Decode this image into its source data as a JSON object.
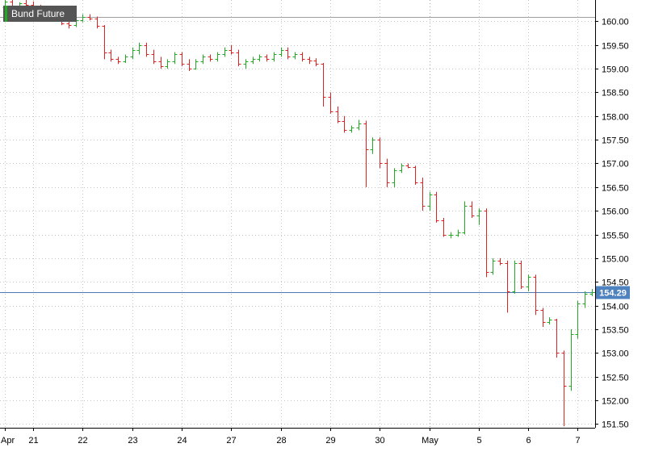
{
  "chart_data": {
    "type": "ohlc",
    "title": "Bund Future",
    "price_label": "154.29",
    "last_price": 154.29,
    "ylim": [
      151.42,
      160.45
    ],
    "ytick_values": [
      151.5,
      152.0,
      152.5,
      153.0,
      153.5,
      154.0,
      154.5,
      155.0,
      155.5,
      156.0,
      156.5,
      157.0,
      157.5,
      158.0,
      158.5,
      159.0,
      159.5,
      160.0
    ],
    "ytick_labels": [
      "151.50",
      "152.00",
      "152.50",
      "153.00",
      "153.50",
      "154.00",
      "154.50",
      "155.00",
      "155.50",
      "156.00",
      "156.50",
      "157.00",
      "157.50",
      "158.00",
      "158.50",
      "159.00",
      "159.50",
      "160.00"
    ],
    "xtick_labels": [
      "Apr",
      "21",
      "22",
      "23",
      "24",
      "27",
      "28",
      "29",
      "30",
      "May",
      "5",
      "6",
      "7"
    ],
    "xtick_positions": [
      0,
      4,
      11,
      18,
      25,
      32,
      39,
      46,
      53,
      60,
      67,
      74,
      81
    ],
    "vertical_gridline_index": 60,
    "reference_line": 160.1,
    "grid": true,
    "colors": {
      "up": "#22aa22",
      "down": "#dd2222",
      "grid": "#c8c8c8",
      "price_line": "#4b7ab0",
      "price_tag": "#4f83c0",
      "title_bg": "#555555"
    },
    "candles": [
      [
        160.3,
        160.45,
        160.2,
        160.42
      ],
      [
        160.42,
        160.45,
        160.25,
        160.3
      ],
      [
        160.3,
        160.4,
        160.25,
        160.38
      ],
      [
        160.38,
        160.45,
        160.3,
        160.35
      ],
      [
        160.35,
        160.42,
        160.2,
        160.3
      ],
      [
        160.3,
        160.35,
        160.2,
        160.25
      ],
      [
        160.25,
        160.3,
        160.1,
        160.15
      ],
      [
        160.15,
        160.2,
        160.0,
        160.05
      ],
      [
        160.05,
        160.1,
        159.92,
        159.95
      ],
      [
        159.95,
        160.0,
        159.85,
        159.92
      ],
      [
        159.92,
        160.05,
        159.88,
        160.02
      ],
      [
        160.02,
        160.15,
        159.98,
        160.1
      ],
      [
        160.1,
        160.15,
        160.02,
        160.05
      ],
      [
        160.05,
        160.1,
        159.85,
        159.9
      ],
      [
        159.9,
        159.92,
        159.2,
        159.35
      ],
      [
        159.35,
        159.4,
        159.15,
        159.2
      ],
      [
        159.2,
        159.25,
        159.1,
        159.15
      ],
      [
        159.15,
        159.3,
        159.12,
        159.25
      ],
      [
        159.25,
        159.45,
        159.2,
        159.4
      ],
      [
        159.4,
        159.55,
        159.3,
        159.5
      ],
      [
        159.5,
        159.55,
        159.25,
        159.3
      ],
      [
        159.3,
        159.4,
        159.1,
        159.15
      ],
      [
        159.15,
        159.25,
        159.0,
        159.05
      ],
      [
        159.05,
        159.2,
        159.0,
        159.15
      ],
      [
        159.15,
        159.35,
        159.1,
        159.3
      ],
      [
        159.3,
        159.35,
        159.05,
        159.1
      ],
      [
        159.1,
        159.2,
        158.95,
        159.0
      ],
      [
        159.0,
        159.2,
        158.98,
        159.15
      ],
      [
        159.15,
        159.3,
        159.1,
        159.25
      ],
      [
        159.25,
        159.3,
        159.15,
        159.2
      ],
      [
        159.2,
        159.35,
        159.15,
        159.3
      ],
      [
        159.3,
        159.45,
        159.25,
        159.4
      ],
      [
        159.4,
        159.5,
        159.3,
        159.35
      ],
      [
        159.35,
        159.4,
        159.05,
        159.1
      ],
      [
        159.1,
        159.2,
        159.0,
        159.15
      ],
      [
        159.15,
        159.25,
        159.1,
        159.2
      ],
      [
        159.2,
        159.3,
        159.15,
        159.25
      ],
      [
        159.25,
        159.3,
        159.15,
        159.2
      ],
      [
        159.2,
        159.35,
        159.15,
        159.3
      ],
      [
        159.3,
        159.45,
        159.25,
        159.4
      ],
      [
        159.4,
        159.45,
        159.2,
        159.25
      ],
      [
        159.25,
        159.35,
        159.2,
        159.3
      ],
      [
        159.3,
        159.35,
        159.15,
        159.2
      ],
      [
        159.2,
        159.25,
        159.1,
        159.18
      ],
      [
        159.18,
        159.22,
        159.05,
        159.1
      ],
      [
        159.1,
        159.12,
        158.2,
        158.4
      ],
      [
        158.4,
        158.5,
        158.05,
        158.1
      ],
      [
        158.1,
        158.2,
        157.85,
        157.9
      ],
      [
        157.9,
        158.0,
        157.65,
        157.7
      ],
      [
        157.7,
        157.8,
        157.65,
        157.75
      ],
      [
        157.75,
        157.92,
        157.7,
        157.85
      ],
      [
        157.85,
        157.9,
        156.5,
        157.3
      ],
      [
        157.3,
        157.55,
        157.2,
        157.5
      ],
      [
        157.5,
        157.55,
        156.9,
        157.0
      ],
      [
        157.0,
        157.1,
        156.5,
        156.6
      ],
      [
        156.6,
        156.9,
        156.5,
        156.85
      ],
      [
        156.85,
        157.0,
        156.8,
        156.95
      ],
      [
        156.95,
        157.0,
        156.9,
        156.92
      ],
      [
        156.92,
        156.95,
        156.55,
        156.6
      ],
      [
        156.6,
        156.7,
        156.0,
        156.1
      ],
      [
        156.1,
        156.4,
        156.0,
        156.35
      ],
      [
        156.35,
        156.4,
        155.75,
        155.8
      ],
      [
        155.8,
        155.85,
        155.45,
        155.5
      ],
      [
        155.5,
        155.55,
        155.42,
        155.5
      ],
      [
        155.5,
        155.6,
        155.45,
        155.55
      ],
      [
        155.55,
        156.2,
        155.5,
        156.1
      ],
      [
        156.1,
        156.2,
        155.85,
        155.9
      ],
      [
        155.9,
        156.05,
        155.7,
        156.0
      ],
      [
        156.0,
        156.05,
        154.6,
        154.7
      ],
      [
        154.7,
        155.0,
        154.65,
        154.95
      ],
      [
        154.95,
        155.0,
        154.85,
        154.9
      ],
      [
        154.9,
        154.95,
        153.85,
        154.3
      ],
      [
        154.3,
        154.95,
        154.25,
        154.9
      ],
      [
        154.9,
        154.95,
        154.35,
        154.4
      ],
      [
        154.4,
        154.65,
        154.3,
        154.6
      ],
      [
        154.6,
        154.65,
        153.8,
        153.9
      ],
      [
        153.9,
        153.95,
        153.55,
        153.65
      ],
      [
        153.65,
        153.75,
        153.6,
        153.7
      ],
      [
        153.7,
        153.72,
        152.9,
        153.0
      ],
      [
        153.0,
        153.05,
        151.45,
        152.3
      ],
      [
        152.3,
        153.5,
        152.2,
        153.4
      ],
      [
        153.4,
        154.1,
        153.3,
        154.05
      ],
      [
        154.05,
        154.3,
        153.95,
        154.25
      ],
      [
        154.25,
        154.35,
        154.2,
        154.29
      ]
    ]
  }
}
